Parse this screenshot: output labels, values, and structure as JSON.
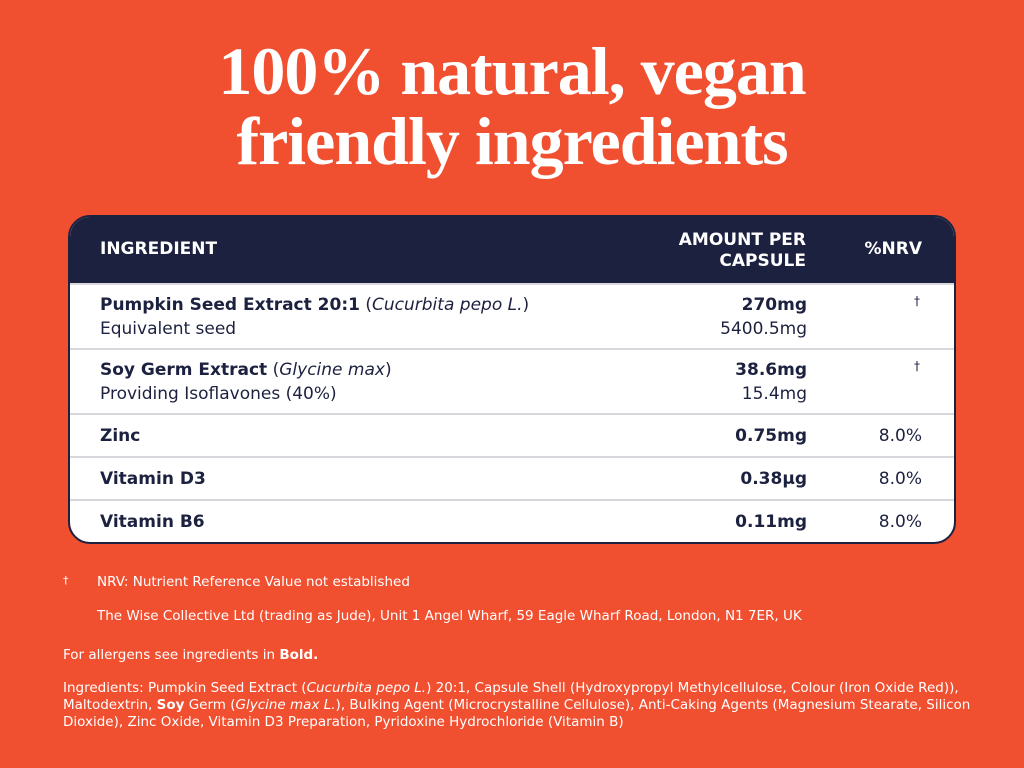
{
  "title": {
    "lines": [
      "100% natural, vegan",
      "friendly ingredients"
    ]
  },
  "table": {
    "headers": [
      "INGREDIENT",
      "AMOUNT PER CAPSULE",
      "%NRV"
    ],
    "rows": [
      {
        "name": [
          {
            "text": "Pumpkin Seed Extract 20:1",
            "style": "bold"
          },
          {
            "text": " (",
            "style": "normal"
          },
          {
            "text": "Cucurbita pepo L.",
            "style": "italic"
          },
          {
            "text": ")",
            "style": "normal"
          }
        ],
        "sub": "Equivalent seed",
        "amount": "270mg",
        "sub_amount": "5400.5mg",
        "nrv": "†"
      },
      {
        "name": [
          {
            "text": "Soy Germ Extract",
            "style": "bold"
          },
          {
            "text": " (",
            "style": "normal"
          },
          {
            "text": "Glycine max",
            "style": "italic"
          },
          {
            "text": ")",
            "style": "normal"
          }
        ],
        "sub": "Providing Isoflavones (40%)",
        "amount": "38.6mg",
        "sub_amount": "15.4mg",
        "nrv": "†"
      },
      {
        "name": [
          {
            "text": "Zinc",
            "style": "bold"
          }
        ],
        "amount": "0.75mg",
        "nrv": "8.0%"
      },
      {
        "name": [
          {
            "text": "Vitamin D3",
            "style": "bold"
          }
        ],
        "amount": "0.38µg",
        "nrv": "8.0%"
      },
      {
        "name": [
          {
            "text": "Vitamin B6",
            "style": "bold"
          }
        ],
        "amount": "0.11mg",
        "nrv": "8.0%"
      }
    ]
  },
  "footnotes": {
    "dagger": "†",
    "nrv_note": "NRV: Nutrient Reference Value not established",
    "address": "The Wise Collective Ltd (trading as Jude), Unit 1 Angel Wharf, 59 Eagle Wharf Road, London, N1 7ER, UK",
    "allergens": [
      {
        "text": "For allergens see ingredients in ",
        "style": "normal"
      },
      {
        "text": "Bold.",
        "style": "bold"
      }
    ],
    "ingredients": [
      {
        "text": "Ingredients: Pumpkin Seed Extract (",
        "style": "normal"
      },
      {
        "text": "Cucurbita pepo L.",
        "style": "italic"
      },
      {
        "text": ") 20:1, Capsule Shell (Hydroxypropyl Methylcellulose, Colour (Iron Oxide Red)), Maltodextrin, ",
        "style": "normal"
      },
      {
        "text": "Soy",
        "style": "bold"
      },
      {
        "text": " Germ (",
        "style": "normal"
      },
      {
        "text": "Glycine max L.",
        "style": "italic"
      },
      {
        "text": "), Bulking Agent (Microcrystalline Cellulose), Anti-Caking Agents (Magnesium Stearate, Silicon Dioxide), Zinc Oxide, Vitamin D3 Preparation, Pyridoxine Hydrochloride (Vitamin B)",
        "style": "normal"
      }
    ]
  }
}
